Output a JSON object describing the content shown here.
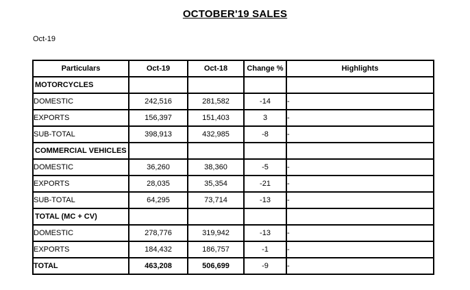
{
  "page": {
    "title": "OCTOBER'19 SALES",
    "period_label": "Oct-19"
  },
  "colors": {
    "background": "#ffffff",
    "text": "#000000",
    "table_border": "#000000"
  },
  "table": {
    "columns": [
      "Particulars",
      "Oct-19",
      "Oct-18",
      "Change %",
      "Highlights"
    ],
    "rows": [
      {
        "type": "section",
        "particulars": "MOTORCYCLES",
        "oct19": "",
        "oct18": "",
        "change": "",
        "highlights": ""
      },
      {
        "type": "data",
        "particulars": "DOMESTIC",
        "oct19": "242,516",
        "oct18": "281,582",
        "change": "-14",
        "highlights": "-"
      },
      {
        "type": "data",
        "particulars": "EXPORTS",
        "oct19": "156,397",
        "oct18": "151,403",
        "change": "3",
        "highlights": "-"
      },
      {
        "type": "data",
        "particulars": "SUB-TOTAL",
        "oct19": "398,913",
        "oct18": "432,985",
        "change": "-8",
        "highlights": "-"
      },
      {
        "type": "section",
        "particulars": "COMMERCIAL VEHICLES",
        "oct19": "",
        "oct18": "",
        "change": "",
        "highlights": ""
      },
      {
        "type": "data",
        "particulars": "DOMESTIC",
        "oct19": "36,260",
        "oct18": "38,360",
        "change": "-5",
        "highlights": "-"
      },
      {
        "type": "data",
        "particulars": "EXPORTS",
        "oct19": "28,035",
        "oct18": "35,354",
        "change": "-21",
        "highlights": "-"
      },
      {
        "type": "data",
        "particulars": "SUB-TOTAL",
        "oct19": "64,295",
        "oct18": "73,714",
        "change": "-13",
        "highlights": "-"
      },
      {
        "type": "section",
        "particulars": "TOTAL (MC + CV)",
        "oct19": "",
        "oct18": "",
        "change": "",
        "highlights": ""
      },
      {
        "type": "data",
        "particulars": "DOMESTIC",
        "oct19": "278,776",
        "oct18": "319,942",
        "change": "-13",
        "highlights": "-"
      },
      {
        "type": "data",
        "particulars": "EXPORTS",
        "oct19": "184,432",
        "oct18": "186,757",
        "change": "-1",
        "highlights": "-"
      },
      {
        "type": "total",
        "particulars": "TOTAL",
        "oct19": "463,208",
        "oct18": "506,699",
        "change": "-9",
        "highlights": "-"
      }
    ]
  }
}
